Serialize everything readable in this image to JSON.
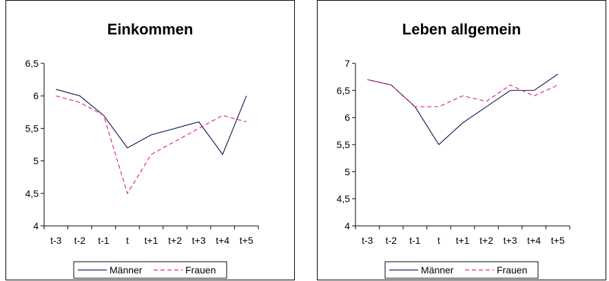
{
  "chart_data": [
    {
      "type": "line",
      "title": "Einkommen",
      "categories": [
        "t-3",
        "t-2",
        "t-1",
        "t",
        "t+1",
        "t+2",
        "t+3",
        "t+4",
        "t+5"
      ],
      "ylim": [
        4,
        6.5
      ],
      "yticks": [
        "4",
        "4,5",
        "5",
        "5,5",
        "6",
        "6,5"
      ],
      "ytick_values": [
        4,
        4.5,
        5,
        5.5,
        6,
        6.5
      ],
      "grid": false,
      "legend_position": "bottom",
      "series": [
        {
          "name": "Männer",
          "values": [
            6.1,
            6.0,
            5.7,
            5.2,
            5.4,
            5.5,
            5.6,
            5.1,
            6.0
          ],
          "color": "#1a1a5a",
          "style": "solid"
        },
        {
          "name": "Frauen",
          "values": [
            6.0,
            5.9,
            5.7,
            4.5,
            5.1,
            5.3,
            5.5,
            5.7,
            5.6
          ],
          "color": "#e0218a",
          "style": "dashed"
        }
      ]
    },
    {
      "type": "line",
      "title": "Leben allgemein",
      "categories": [
        "t-3",
        "t-2",
        "t-1",
        "t",
        "t+1",
        "t+2",
        "t+3",
        "t+4",
        "t+5"
      ],
      "ylim": [
        4,
        7
      ],
      "yticks": [
        "4",
        "4,5",
        "5",
        "5,5",
        "6",
        "6,5",
        "7"
      ],
      "ytick_values": [
        4,
        4.5,
        5,
        5.5,
        6,
        6.5,
        7
      ],
      "grid": false,
      "legend_position": "bottom",
      "series": [
        {
          "name": "Männer",
          "values": [
            6.7,
            6.6,
            6.2,
            5.5,
            5.9,
            6.2,
            6.5,
            6.5,
            6.8
          ],
          "color": "#1a1a5a",
          "style": "solid"
        },
        {
          "name": "Frauen",
          "values": [
            6.7,
            6.6,
            6.2,
            6.2,
            6.4,
            6.3,
            6.6,
            6.4,
            6.6
          ],
          "color": "#e0218a",
          "style": "dashed"
        }
      ]
    }
  ]
}
